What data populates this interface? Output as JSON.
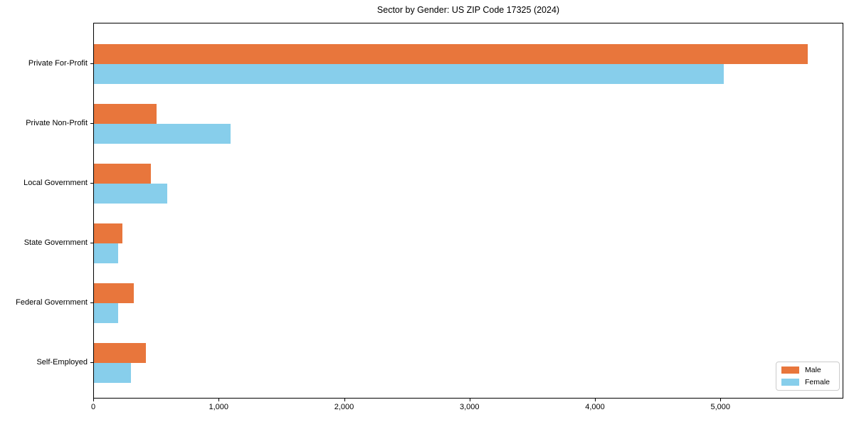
{
  "figure": {
    "background": "#ffffff",
    "text_color": "#000000",
    "spine_color": "#000000"
  },
  "chart_data": {
    "type": "bar",
    "orientation": "horizontal",
    "title": "Sector by Gender: US ZIP Code 17325 (2024)",
    "categories": [
      "Private For-Profit",
      "Private Non-Profit",
      "Local Government",
      "State Government",
      "Federal Government",
      "Self-Employed"
    ],
    "series": [
      {
        "name": "Male",
        "color": "#E8763C",
        "values": [
          5690,
          500,
          455,
          228,
          320,
          415
        ]
      },
      {
        "name": "Female",
        "color": "#87CEEB",
        "values": [
          5020,
          1090,
          585,
          192,
          194,
          293
        ]
      }
    ],
    "xlabel": "",
    "ylabel": "",
    "xlim": [
      0,
      5980
    ],
    "xticks": [
      0,
      1000,
      2000,
      3000,
      4000,
      5000
    ],
    "xtick_labels": [
      "0",
      "1,000",
      "2,000",
      "3,000",
      "4,000",
      "5,000"
    ],
    "grid": false,
    "legend": {
      "position": "lower right",
      "labels": [
        "Male",
        "Female"
      ]
    }
  }
}
